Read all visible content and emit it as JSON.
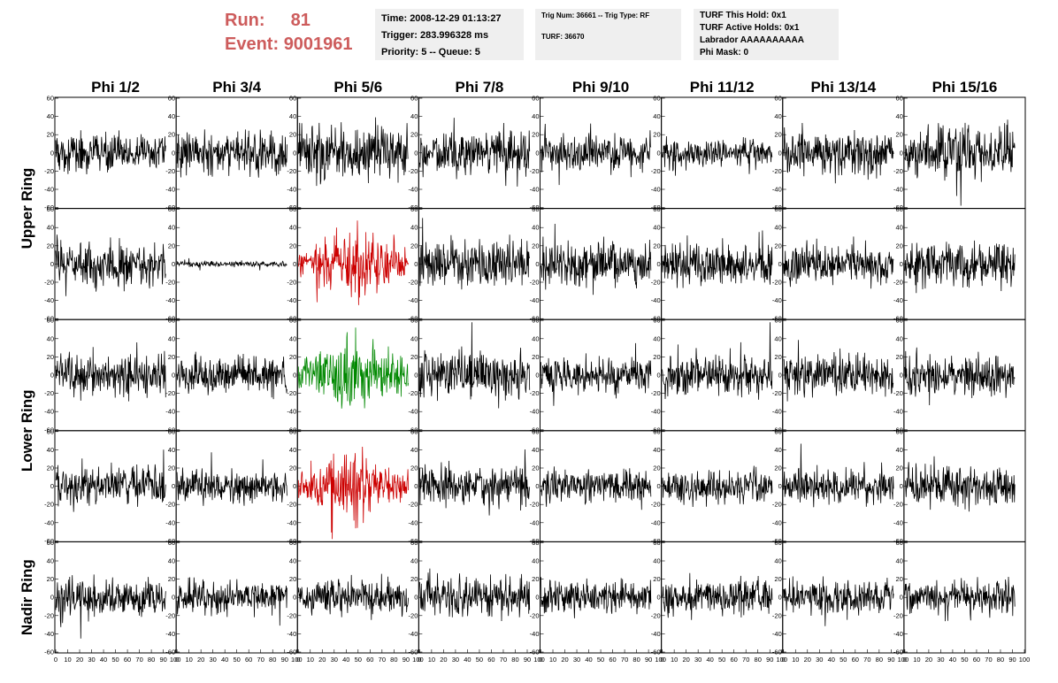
{
  "header": {
    "run_label": "Run:",
    "run_value": "81",
    "event_label": "Event:",
    "event_value": "9001961",
    "accent_color": "#cd5c5c"
  },
  "info_boxes": [
    {
      "lines": [
        "Time: 2008-12-29 01:13:27",
        "Trigger: 283.996328 ms",
        "Priority: 5 -- Queue: 5"
      ]
    },
    {
      "lines": [
        "Trig Num: 36661 -- Trig Type: RF",
        "",
        "TURF: 36670"
      ]
    },
    {
      "lines": [
        "TURF This Hold: 0x1",
        "TURF Active Holds: 0x1",
        "Labrador AAAAAAAAAA",
        "Phi Mask: 0"
      ]
    }
  ],
  "chart_data": {
    "type": "line",
    "columns": [
      "Phi 1/2",
      "Phi 3/4",
      "Phi 5/6",
      "Phi 7/8",
      "Phi 9/10",
      "Phi 11/12",
      "Phi 13/14",
      "Phi 15/16"
    ],
    "row_groups": [
      {
        "label": "Upper Ring",
        "rows": [
          0,
          1
        ]
      },
      {
        "label": "Lower Ring",
        "rows": [
          2,
          3
        ]
      },
      {
        "label": "Nadir Ring",
        "rows": [
          4
        ]
      }
    ],
    "ylim": [
      -60,
      60
    ],
    "xlim": [
      0,
      100
    ],
    "y_ticks": [
      "60",
      "40",
      "20",
      "0",
      "-20",
      "-40",
      "-60"
    ],
    "x_ticks": [
      "0",
      "10",
      "20",
      "30",
      "40",
      "50",
      "60",
      "70",
      "80",
      "90",
      "100"
    ],
    "n_samples": 260,
    "x_span": [
      0,
      92
    ],
    "default_color": "#000000",
    "traces": [
      [
        {
          "amp": 10,
          "color": "#000000"
        },
        {
          "amp": 11,
          "color": "#000000"
        },
        {
          "amp": 16,
          "color": "#000000"
        },
        {
          "amp": 13,
          "color": "#000000"
        },
        {
          "amp": 10,
          "color": "#000000"
        },
        {
          "amp": 8,
          "color": "#000000"
        },
        {
          "amp": 11,
          "color": "#000000"
        },
        {
          "amp": 14,
          "color": "#000000"
        }
      ],
      [
        {
          "amp": 13,
          "color": "#000000"
        },
        {
          "amp": 1.5,
          "color": "#000000"
        },
        {
          "amp": 16,
          "color": "#cc0000"
        },
        {
          "amp": 12,
          "color": "#000000"
        },
        {
          "amp": 12,
          "color": "#000000"
        },
        {
          "amp": 11,
          "color": "#000000"
        },
        {
          "amp": 10,
          "color": "#000000"
        },
        {
          "amp": 12,
          "color": "#000000"
        }
      ],
      [
        {
          "amp": 12,
          "color": "#000000"
        },
        {
          "amp": 10,
          "color": "#000000"
        },
        {
          "amp": 17,
          "color": "#008800"
        },
        {
          "amp": 13,
          "color": "#000000"
        },
        {
          "amp": 11,
          "color": "#000000"
        },
        {
          "amp": 11,
          "color": "#000000"
        },
        {
          "amp": 11,
          "color": "#000000"
        },
        {
          "amp": 11,
          "color": "#000000"
        }
      ],
      [
        {
          "amp": 11,
          "color": "#000000"
        },
        {
          "amp": 10,
          "color": "#000000"
        },
        {
          "amp": 16,
          "color": "#cc0000"
        },
        {
          "amp": 11,
          "color": "#000000"
        },
        {
          "amp": 9,
          "color": "#000000"
        },
        {
          "amp": 9,
          "color": "#000000"
        },
        {
          "amp": 9,
          "color": "#000000"
        },
        {
          "amp": 11,
          "color": "#000000"
        }
      ],
      [
        {
          "amp": 10,
          "color": "#000000"
        },
        {
          "amp": 9,
          "color": "#000000"
        },
        {
          "amp": 10,
          "color": "#000000"
        },
        {
          "amp": 11,
          "color": "#000000"
        },
        {
          "amp": 9,
          "color": "#000000"
        },
        {
          "amp": 10,
          "color": "#000000"
        },
        {
          "amp": 9,
          "color": "#000000"
        },
        {
          "amp": 10,
          "color": "#000000"
        }
      ]
    ]
  }
}
